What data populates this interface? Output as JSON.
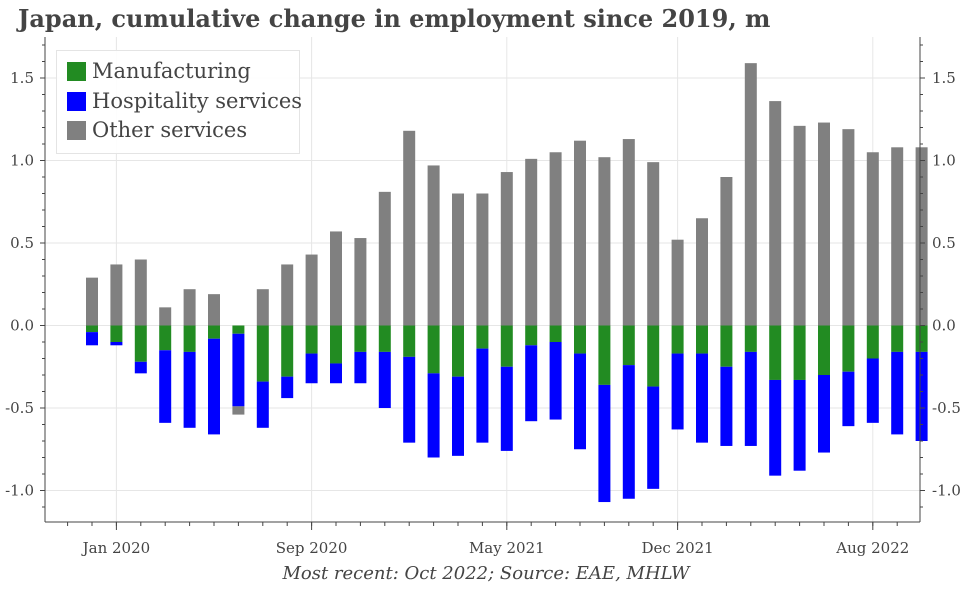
{
  "chart_data": {
    "type": "bar",
    "stacked": true,
    "title": "Japan, cumulative change in employment since 2019, m",
    "subtitle": "Most recent: Oct 2022; Source: EAE, MHLW",
    "ylim": [
      -1.2,
      1.75
    ],
    "yticks": [
      -1.0,
      -0.5,
      0.0,
      0.5,
      1.0,
      1.5
    ],
    "ytick_labels": [
      "-1.0",
      "-0.5",
      "0.0",
      "0.5",
      "1.0",
      "1.5"
    ],
    "xtick_labels": [
      {
        "index": 1,
        "label": "Jan 2020"
      },
      {
        "index": 9,
        "label": "Sep 2020"
      },
      {
        "index": 17,
        "label": "May 2021"
      },
      {
        "index": 24,
        "label": "Dec 2021"
      },
      {
        "index": 32,
        "label": "Aug 2022"
      }
    ],
    "categories": [
      "Dec 2019",
      "Jan 2020",
      "Feb 2020",
      "Mar 2020",
      "Apr 2020",
      "May 2020",
      "Jun 2020",
      "Jul 2020",
      "Aug 2020",
      "Sep 2020",
      "Oct 2020",
      "Nov 2020",
      "Dec 2020",
      "Jan 2021",
      "Feb 2021",
      "Mar 2021",
      "Apr 2021",
      "May 2021",
      "Jun 2021",
      "Jul 2021",
      "Aug 2021",
      "Sep 2021",
      "Oct 2021",
      "Nov 2021",
      "Dec 2021",
      "Jan 2022",
      "Feb 2022",
      "Mar 2022",
      "Apr 2022",
      "May 2022",
      "Jun 2022",
      "Jul 2022",
      "Aug 2022",
      "Sep 2022",
      "Oct 2022"
    ],
    "series": [
      {
        "name": "Manufacturing",
        "color": "#228b22",
        "values": [
          -0.04,
          -0.1,
          -0.22,
          -0.15,
          -0.16,
          -0.08,
          -0.05,
          -0.34,
          -0.31,
          -0.17,
          -0.23,
          -0.16,
          -0.16,
          -0.19,
          -0.29,
          -0.31,
          -0.14,
          -0.25,
          -0.12,
          -0.1,
          -0.17,
          -0.36,
          -0.24,
          -0.37,
          -0.17,
          -0.17,
          -0.25,
          -0.16,
          -0.33,
          -0.33,
          -0.3,
          -0.28,
          -0.2,
          -0.16,
          -0.16
        ]
      },
      {
        "name": "Hospitality services",
        "color": "#0000ff",
        "values": [
          -0.08,
          -0.02,
          -0.07,
          -0.44,
          -0.46,
          -0.58,
          -0.44,
          -0.28,
          -0.13,
          -0.18,
          -0.12,
          -0.19,
          -0.34,
          -0.52,
          -0.51,
          -0.48,
          -0.57,
          -0.51,
          -0.46,
          -0.47,
          -0.58,
          -0.71,
          -0.81,
          -0.62,
          -0.46,
          -0.54,
          -0.48,
          -0.57,
          -0.58,
          -0.55,
          -0.47,
          -0.33,
          -0.39,
          -0.5,
          -0.54
        ]
      },
      {
        "name": "Other services",
        "color": "#808080",
        "values": [
          0.29,
          0.37,
          0.4,
          0.11,
          0.22,
          0.19,
          -0.05,
          0.22,
          0.37,
          0.43,
          0.57,
          0.53,
          0.81,
          1.18,
          0.97,
          0.8,
          0.8,
          0.93,
          1.01,
          1.05,
          1.12,
          1.02,
          1.13,
          0.99,
          0.52,
          0.65,
          0.9,
          1.59,
          1.36,
          1.21,
          1.23,
          1.19,
          1.05,
          1.08,
          1.08
        ]
      }
    ]
  }
}
